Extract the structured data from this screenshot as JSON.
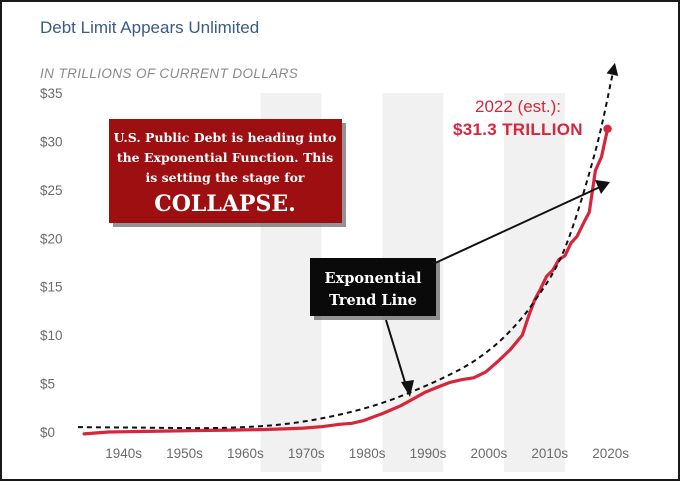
{
  "title": "Debt Limit Appears Unlimited",
  "subtitle": "IN TRILLIONS OF CURRENT DOLLARS",
  "colors": {
    "title": "#3b5a86",
    "debt_line": "#d6263c",
    "trend_line": "#111111",
    "callout_red": "#9e0f12",
    "callout_black": "#0a0a0a",
    "band": "#f1f1f1"
  },
  "annotations": {
    "estimate_label": "2022 (est.):",
    "estimate_value": "$31.3 TRILLION",
    "red_box_lines": [
      "U.S. Public Debt is heading into",
      "the Exponential Function.  This",
      "is setting the stage for"
    ],
    "red_box_emphasis": "COLLAPSE.",
    "black_box_lines": [
      "Exponential",
      "Trend Line"
    ]
  },
  "chart_data": {
    "type": "line",
    "title": "Debt Limit Appears Unlimited",
    "subtitle": "IN TRILLIONS OF CURRENT DOLLARS",
    "xlabel": "",
    "ylabel": "",
    "xlim": [
      1935,
      2027
    ],
    "ylim": [
      0,
      35
    ],
    "yticks": [
      0,
      5,
      10,
      15,
      20,
      25,
      30,
      35
    ],
    "ytick_labels": [
      "$0",
      "$5",
      "$10",
      "$15",
      "$20",
      "$25",
      "$30",
      "$35"
    ],
    "xtick_labels": [
      "1940s",
      "1950s",
      "1960s",
      "1970s",
      "1980s",
      "1990s",
      "2000s",
      "2010s",
      "2020s"
    ],
    "xtick_centers": [
      1940,
      1950,
      1960,
      1970,
      1980,
      1990,
      2000,
      2010,
      2020
    ],
    "grid": false,
    "series": [
      {
        "kind": "data",
        "x": [
          1936,
          1940,
          1945,
          1950,
          1955,
          1960,
          1965,
          1970,
          1972,
          1975,
          1978,
          1980,
          1982,
          1985,
          1988,
          1990,
          1992,
          1994,
          1996,
          1998,
          2000,
          2002,
          2004,
          2006,
          2008,
          2009,
          2010,
          2011,
          2012,
          2013,
          2014,
          2015,
          2016,
          2017,
          2018,
          2019,
          2020,
          2021,
          2022
        ],
        "y": [
          -0.2,
          0.0,
          0.05,
          0.1,
          0.15,
          0.2,
          0.25,
          0.35,
          0.4,
          0.55,
          0.8,
          0.9,
          1.2,
          1.9,
          2.7,
          3.4,
          4.1,
          4.6,
          5.1,
          5.4,
          5.6,
          6.2,
          7.3,
          8.5,
          10.0,
          11.9,
          13.6,
          14.8,
          16.1,
          16.7,
          17.8,
          18.2,
          19.5,
          20.2,
          21.5,
          22.7,
          27.0,
          28.4,
          31.3
        ]
      },
      {
        "kind": "trend",
        "x": [
          1935,
          1945,
          1955,
          1960,
          1965,
          1970,
          1975,
          1980,
          1985,
          1990,
          1995,
          2000,
          2005,
          2010,
          2015,
          2020,
          2023
        ],
        "y": [
          0.5,
          0.45,
          0.4,
          0.45,
          0.6,
          0.9,
          1.4,
          2.1,
          3.0,
          4.2,
          5.6,
          7.3,
          9.8,
          13.5,
          19.0,
          29.0,
          37.5
        ]
      }
    ]
  }
}
